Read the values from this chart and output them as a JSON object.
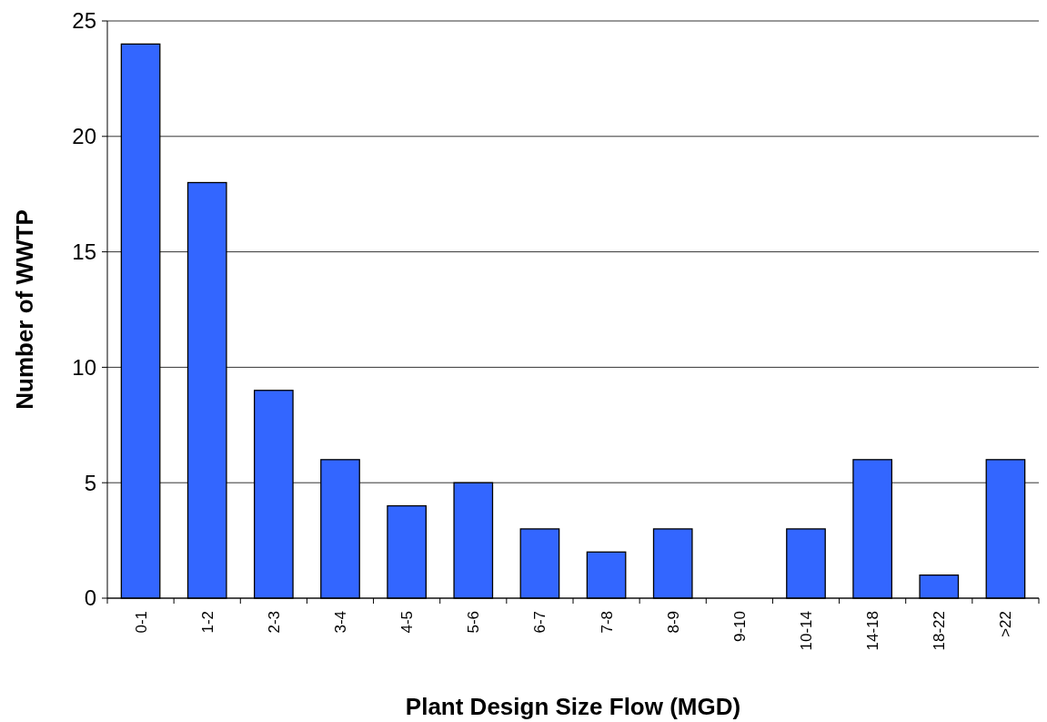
{
  "chart_data": {
    "type": "bar",
    "xlabel": "Plant Design Size Flow (MGD)",
    "ylabel": "Number of WWTP",
    "categories": [
      "0-1",
      "1-2",
      "2-3",
      "3-4",
      "4-5",
      "5-6",
      "6-7",
      "7-8",
      "8-9",
      "9-10",
      "10-14",
      "14-18",
      "18-22",
      ">22"
    ],
    "values": [
      24,
      18,
      9,
      6,
      4,
      5,
      3,
      2,
      3,
      0,
      3,
      6,
      1,
      6
    ],
    "color": "#3366ff",
    "ylim": [
      0,
      25
    ],
    "yticks": [
      0,
      5,
      10,
      15,
      20,
      25
    ],
    "grid": "y"
  }
}
